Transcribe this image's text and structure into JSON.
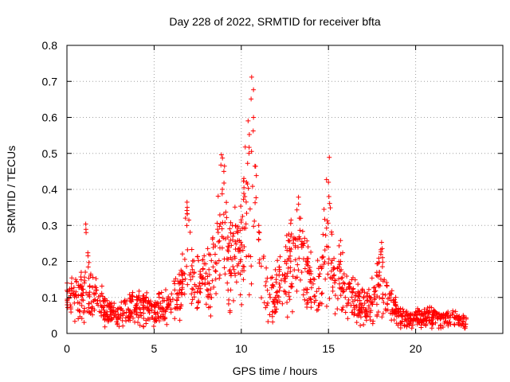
{
  "chart_data": {
    "type": "scatter",
    "title": "Day 228 of 2022, SRMTID for receiver bfta",
    "xlabel": "GPS time / hours",
    "ylabel": "SRMTID / TECUs",
    "xlim": [
      0,
      25
    ],
    "ylim": [
      0,
      0.8
    ],
    "xticks": [
      0,
      5,
      10,
      15,
      20
    ],
    "xtick_labels": [
      "0",
      "5",
      "10",
      "15",
      "20"
    ],
    "yticks": [
      0,
      0.1,
      0.2,
      0.3,
      0.4,
      0.5,
      0.6,
      0.7,
      0.8
    ],
    "ytick_labels": [
      "0",
      "0.1",
      "0.2",
      "0.3",
      "0.4",
      "0.5",
      "0.6",
      "0.7",
      "0.8"
    ],
    "grid": true,
    "marker": "+",
    "color": "#ff0000",
    "series": [
      {
        "name": "SRMTID",
        "envelope": [
          [
            0.0,
            0.12
          ],
          [
            0.5,
            0.15
          ],
          [
            1.0,
            0.14
          ],
          [
            1.1,
            0.28
          ],
          [
            1.3,
            0.13
          ],
          [
            1.7,
            0.12
          ],
          [
            2.2,
            0.09
          ],
          [
            2.8,
            0.06
          ],
          [
            3.3,
            0.09
          ],
          [
            4.0,
            0.1
          ],
          [
            4.5,
            0.09
          ],
          [
            5.0,
            0.08
          ],
          [
            5.5,
            0.09
          ],
          [
            6.0,
            0.11
          ],
          [
            6.5,
            0.14
          ],
          [
            6.9,
            0.35
          ],
          [
            7.3,
            0.17
          ],
          [
            7.8,
            0.18
          ],
          [
            8.5,
            0.22
          ],
          [
            9.0,
            0.45
          ],
          [
            9.3,
            0.25
          ],
          [
            9.8,
            0.28
          ],
          [
            10.3,
            0.42
          ],
          [
            10.7,
            0.6
          ],
          [
            11.0,
            0.3
          ],
          [
            11.5,
            0.12
          ],
          [
            12.0,
            0.15
          ],
          [
            12.5,
            0.2
          ],
          [
            13.0,
            0.26
          ],
          [
            13.4,
            0.32
          ],
          [
            13.8,
            0.2
          ],
          [
            14.2,
            0.15
          ],
          [
            14.6,
            0.18
          ],
          [
            15.0,
            0.42
          ],
          [
            15.3,
            0.16
          ],
          [
            15.7,
            0.2
          ],
          [
            16.2,
            0.13
          ],
          [
            16.8,
            0.11
          ],
          [
            17.4,
            0.1
          ],
          [
            18.0,
            0.22
          ],
          [
            18.5,
            0.1
          ],
          [
            19.0,
            0.07
          ],
          [
            19.5,
            0.05
          ],
          [
            20.0,
            0.06
          ],
          [
            20.5,
            0.055
          ],
          [
            21.0,
            0.06
          ],
          [
            21.5,
            0.05
          ],
          [
            22.0,
            0.05
          ],
          [
            22.5,
            0.045
          ],
          [
            22.9,
            0.04
          ]
        ]
      }
    ]
  }
}
